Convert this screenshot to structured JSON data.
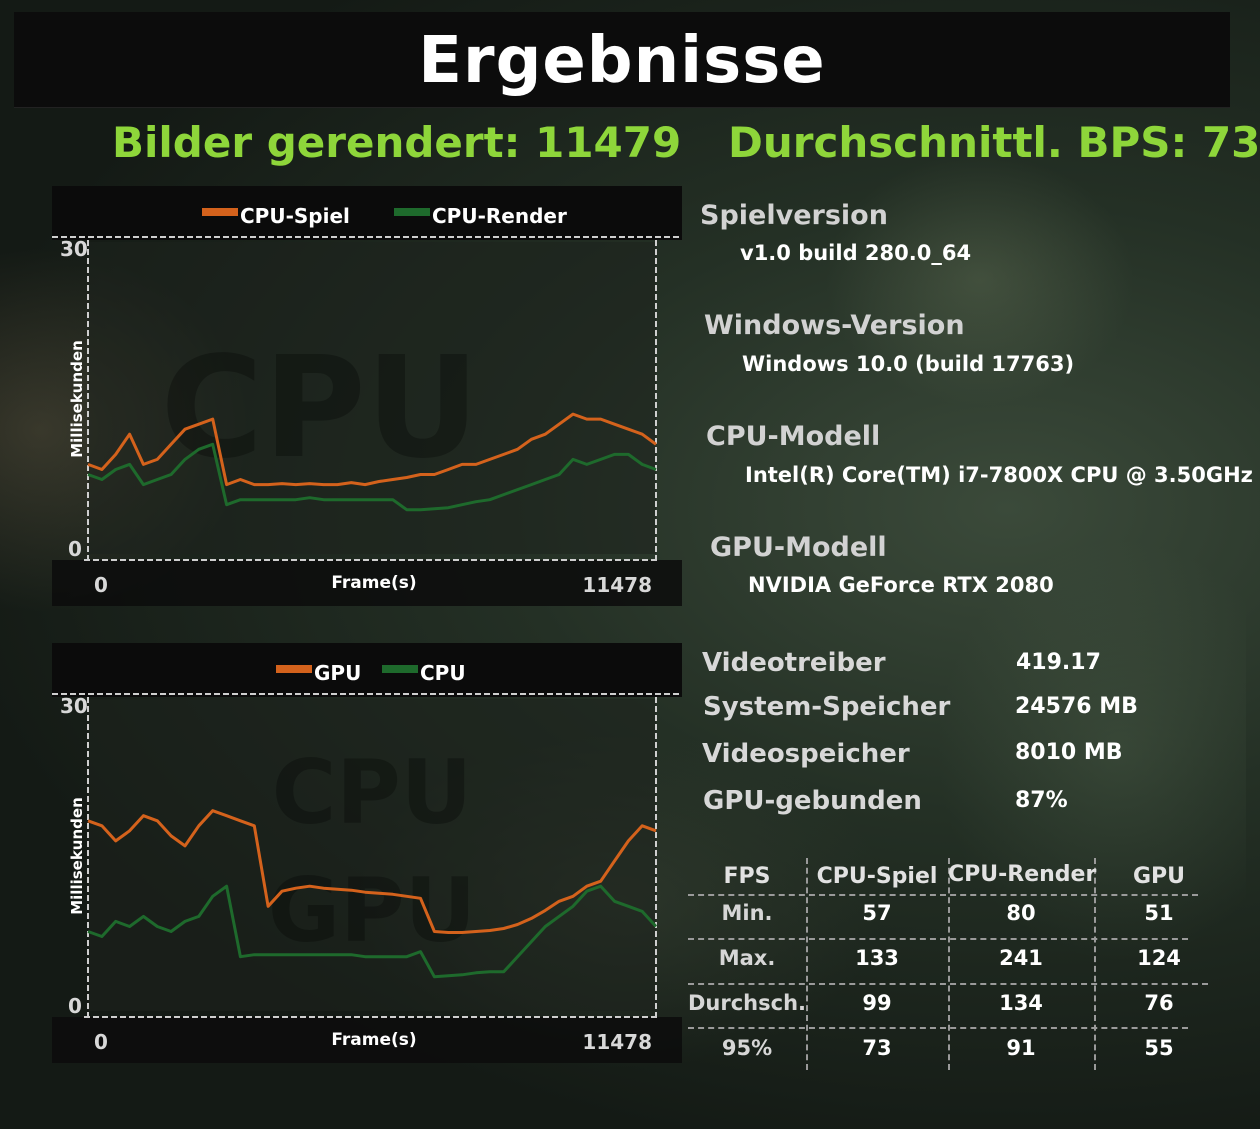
{
  "title": "Ergebnisse",
  "summary": {
    "frames_rendered": "Bilder gerendert: 11479",
    "avg_fps": "Durchschnittl. BPS: 73"
  },
  "chart_data": [
    {
      "type": "line",
      "watermark": "CPU",
      "legend": [
        {
          "name": "CPU-Spiel",
          "color": "#d4621c"
        },
        {
          "name": "CPU-Render",
          "color": "#1e6a2c"
        }
      ],
      "ylabel": "Millisekunden",
      "xlabel": "Frame(s)",
      "ylim": [
        0,
        30
      ],
      "xlim": [
        0,
        11478
      ],
      "y_ticks": [
        "30",
        "0"
      ],
      "x_ticks": [
        "0",
        "11478"
      ],
      "series": [
        {
          "name": "CPU-Spiel",
          "color": "#d4621c",
          "x": [
            0,
            280,
            560,
            840,
            1120,
            1400,
            1680,
            1960,
            2240,
            2520,
            2800,
            3080,
            3360,
            3640,
            3920,
            4200,
            4480,
            4760,
            5040,
            5320,
            5600,
            5880,
            6160,
            6440,
            6720,
            7000,
            7280,
            7560,
            7840,
            8120,
            8400,
            8680,
            8960,
            9240,
            9520,
            9800,
            10080,
            10360,
            10640,
            10920,
            11200,
            11478
          ],
          "values": [
            8.5,
            8.0,
            9.5,
            11.5,
            8.5,
            9.0,
            10.5,
            12.0,
            12.5,
            13.0,
            6.5,
            7.0,
            6.5,
            6.5,
            6.6,
            6.5,
            6.6,
            6.5,
            6.5,
            6.7,
            6.5,
            6.8,
            7.0,
            7.2,
            7.5,
            7.5,
            8.0,
            8.5,
            8.5,
            9.0,
            9.5,
            10.0,
            11.0,
            11.5,
            12.5,
            13.5,
            13.0,
            13.0,
            12.5,
            12.0,
            11.5,
            10.5
          ]
        },
        {
          "name": "CPU-Render",
          "color": "#1e6a2c",
          "x": [
            0,
            280,
            560,
            840,
            1120,
            1400,
            1680,
            1960,
            2240,
            2520,
            2800,
            3080,
            3360,
            3640,
            3920,
            4200,
            4480,
            4760,
            5040,
            5320,
            5600,
            5880,
            6160,
            6440,
            6720,
            7000,
            7280,
            7560,
            7840,
            8120,
            8400,
            8680,
            8960,
            9240,
            9520,
            9800,
            10080,
            10360,
            10640,
            10920,
            11200,
            11478
          ],
          "values": [
            7.5,
            7.0,
            8.0,
            8.5,
            6.5,
            7.0,
            7.5,
            9.0,
            10.0,
            10.5,
            4.5,
            5.0,
            5.0,
            5.0,
            5.0,
            5.0,
            5.2,
            5.0,
            5.0,
            5.0,
            5.0,
            5.0,
            5.0,
            4.0,
            4.0,
            4.1,
            4.2,
            4.5,
            4.8,
            5.0,
            5.5,
            6.0,
            6.5,
            7.0,
            7.5,
            9.0,
            8.5,
            9.0,
            9.5,
            9.5,
            8.5,
            8.0
          ]
        }
      ]
    },
    {
      "type": "line",
      "watermark": "CPU GPU",
      "legend": [
        {
          "name": "GPU",
          "color": "#d4621c"
        },
        {
          "name": "CPU",
          "color": "#1e6a2c"
        }
      ],
      "ylabel": "Millisekunden",
      "xlabel": "Frame(s)",
      "ylim": [
        0,
        30
      ],
      "xlim": [
        0,
        11478
      ],
      "y_ticks": [
        "30",
        "0"
      ],
      "x_ticks": [
        "0",
        "11478"
      ],
      "series": [
        {
          "name": "GPU",
          "color": "#d4621c",
          "x": [
            0,
            280,
            560,
            840,
            1120,
            1400,
            1680,
            1960,
            2240,
            2520,
            2800,
            3080,
            3360,
            3640,
            3920,
            4200,
            4480,
            4760,
            5040,
            5320,
            5600,
            5880,
            6160,
            6440,
            6720,
            7000,
            7280,
            7560,
            7840,
            8120,
            8400,
            8680,
            8960,
            9240,
            9520,
            9800,
            10080,
            10360,
            10640,
            10920,
            11200,
            11478
          ],
          "values": [
            18.5,
            18.0,
            16.5,
            17.5,
            19.0,
            18.5,
            17.0,
            16.0,
            18.0,
            19.5,
            19.0,
            18.5,
            18.0,
            10.0,
            11.5,
            11.8,
            12.0,
            11.8,
            11.7,
            11.6,
            11.4,
            11.3,
            11.2,
            11.0,
            10.8,
            7.5,
            7.4,
            7.4,
            7.5,
            7.6,
            7.8,
            8.2,
            8.8,
            9.6,
            10.5,
            11.0,
            12.0,
            12.5,
            14.5,
            16.5,
            18.0,
            17.5
          ]
        },
        {
          "name": "CPU",
          "color": "#1e6a2c",
          "x": [
            0,
            280,
            560,
            840,
            1120,
            1400,
            1680,
            1960,
            2240,
            2520,
            2800,
            3080,
            3360,
            3640,
            3920,
            4200,
            4480,
            4760,
            5040,
            5320,
            5600,
            5880,
            6160,
            6440,
            6720,
            7000,
            7280,
            7560,
            7840,
            8120,
            8400,
            8680,
            8960,
            9240,
            9520,
            9800,
            10080,
            10360,
            10640,
            10920,
            11200,
            11478
          ],
          "values": [
            7.5,
            7.0,
            8.5,
            8.0,
            9.0,
            8.0,
            7.5,
            8.5,
            9.0,
            11.0,
            12.0,
            5.0,
            5.2,
            5.2,
            5.2,
            5.2,
            5.2,
            5.2,
            5.2,
            5.2,
            5.0,
            5.0,
            5.0,
            5.0,
            5.5,
            3.0,
            3.1,
            3.2,
            3.4,
            3.5,
            3.5,
            5.0,
            6.5,
            8.0,
            9.0,
            10.0,
            11.5,
            12.0,
            10.5,
            10.0,
            9.5,
            8.0
          ]
        }
      ]
    }
  ],
  "system_info": [
    {
      "label": "Spielversion",
      "value": "v1.0 build 280.0_64"
    },
    {
      "label": "Windows-Version",
      "value": "Windows 10.0 (build 17763)"
    },
    {
      "label": "CPU-Modell",
      "value": "Intel(R) Core(TM) i7-7800X CPU @ 3.50GHz"
    },
    {
      "label": "GPU-Modell",
      "value": "NVIDIA GeForce RTX 2080"
    }
  ],
  "stats": [
    {
      "label": "Videotreiber",
      "value": "419.17"
    },
    {
      "label": "System-Speicher",
      "value": "24576 MB"
    },
    {
      "label": "Videospeicher",
      "value": "8010 MB"
    },
    {
      "label": "GPU-gebunden",
      "value": "87%"
    }
  ],
  "fps_table": {
    "headers": [
      "FPS",
      "CPU-Spiel",
      "CPU-Render",
      "GPU"
    ],
    "rows": [
      {
        "label": "Min.",
        "values": [
          "57",
          "80",
          "51"
        ]
      },
      {
        "label": "Max.",
        "values": [
          "133",
          "241",
          "124"
        ]
      },
      {
        "label": "Durchsch.",
        "values": [
          "99",
          "134",
          "76"
        ]
      },
      {
        "label": "95%",
        "values": [
          "73",
          "91",
          "55"
        ]
      }
    ]
  },
  "colors": {
    "accent_green": "#8ed63a",
    "series_orange": "#d4621c",
    "series_green": "#1e6a2c"
  }
}
